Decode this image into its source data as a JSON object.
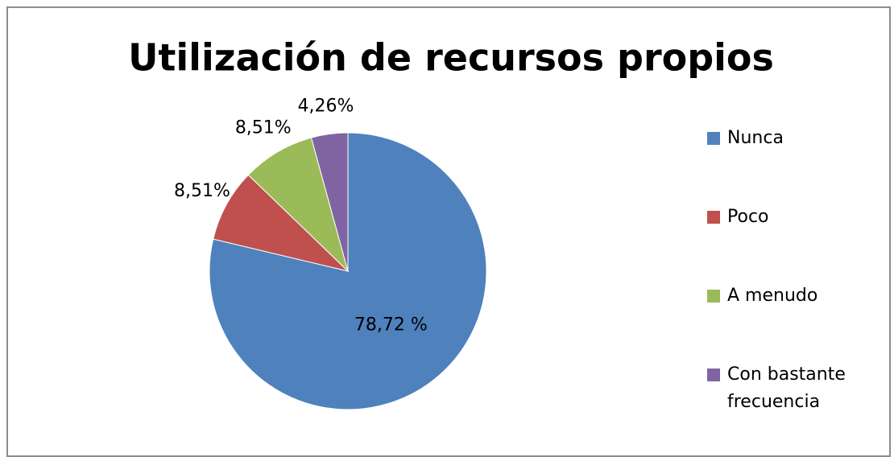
{
  "chart_data": {
    "type": "pie",
    "title": "Utilización de recursos propios",
    "categories": [
      "Nunca",
      "Poco",
      "A menudo",
      "Con bastante frecuencia"
    ],
    "values": [
      78.72,
      8.51,
      8.51,
      4.26
    ],
    "value_labels": [
      "78,72 %",
      "8,51%",
      "8,51%",
      "4,26%"
    ],
    "colors": [
      "#4f81bd",
      "#c0504d",
      "#9bbb59",
      "#8064a2"
    ],
    "legend": "right"
  }
}
